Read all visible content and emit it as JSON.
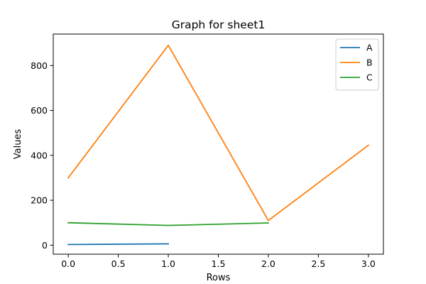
{
  "chart_data": {
    "type": "line",
    "title": "Graph for sheet1",
    "xlabel": "Rows",
    "ylabel": "Values",
    "xlim": [
      -0.15,
      3.15
    ],
    "ylim": [
      -40,
      940
    ],
    "xticks": [
      0.0,
      0.5,
      1.0,
      1.5,
      2.0,
      2.5,
      3.0
    ],
    "xtick_labels": [
      "0.0",
      "0.5",
      "1.0",
      "1.5",
      "2.0",
      "2.5",
      "3.0"
    ],
    "yticks": [
      0,
      200,
      400,
      600,
      800
    ],
    "ytick_labels": [
      "0",
      "200",
      "400",
      "600",
      "800"
    ],
    "grid": false,
    "legend_position": "upper-right",
    "series": [
      {
        "name": "A",
        "color": "#1f77b4",
        "x": [
          0,
          1
        ],
        "values": [
          3,
          6
        ]
      },
      {
        "name": "B",
        "color": "#ff7f0e",
        "x": [
          0,
          1,
          2,
          3
        ],
        "values": [
          300,
          890,
          110,
          445
        ]
      },
      {
        "name": "C",
        "color": "#2ca02c",
        "x": [
          0,
          1,
          2
        ],
        "values": [
          100,
          88,
          99
        ]
      }
    ]
  }
}
